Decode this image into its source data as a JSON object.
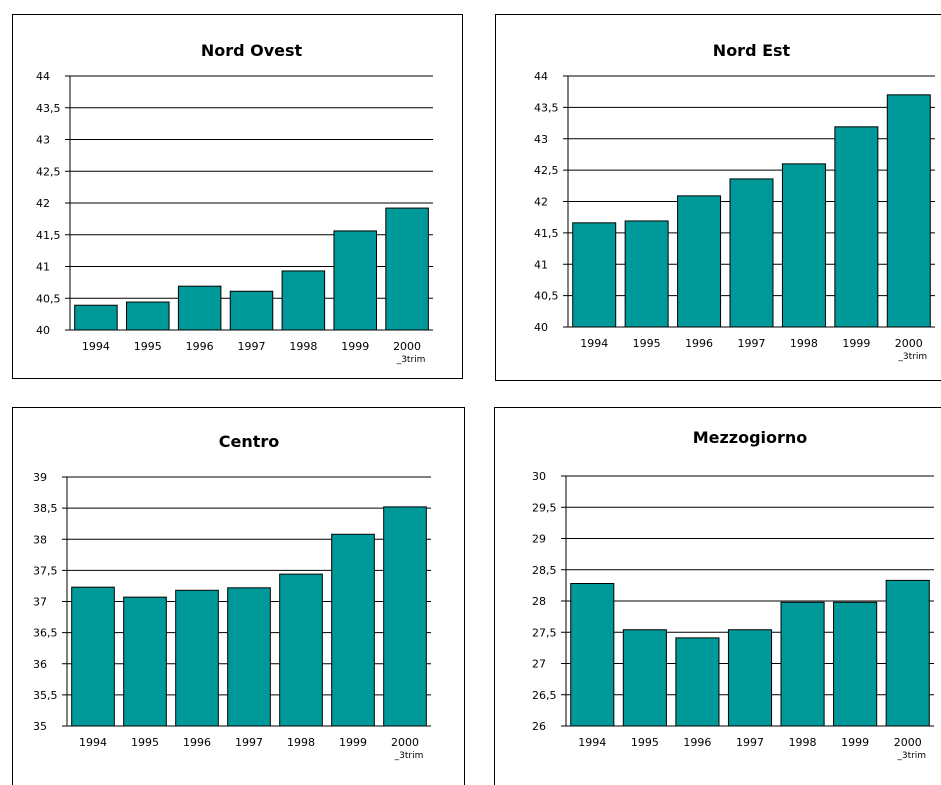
{
  "chart_data": [
    {
      "type": "bar",
      "title": "Nord Ovest",
      "color": "#009999",
      "categories": [
        "1994",
        "1995",
        "1996",
        "1997",
        "1998",
        "1999",
        "2000 _3trim"
      ],
      "values": [
        40.39,
        40.44,
        40.69,
        40.61,
        40.93,
        41.56,
        41.92
      ],
      "ylim": [
        40,
        44
      ],
      "yticks": [
        40,
        {
          "value": 40.5,
          "label": "40,5"
        },
        41,
        {
          "value": 41.5,
          "label": "41,5"
        },
        42,
        {
          "value": 42.5,
          "label": "42,5"
        },
        43,
        {
          "value": 43.5,
          "label": "43,5"
        },
        44
      ],
      "grid": true
    },
    {
      "type": "bar",
      "title": "Nord Est",
      "color": "#009999",
      "categories": [
        "1994",
        "1995",
        "1996",
        "1997",
        "1998",
        "1999",
        "2000 _3trim"
      ],
      "values": [
        41.66,
        41.69,
        42.09,
        42.36,
        42.6,
        43.19,
        43.7
      ],
      "ylim": [
        40,
        44
      ],
      "yticks": [
        40,
        {
          "value": 40.5,
          "label": "40,5"
        },
        41,
        {
          "value": 41.5,
          "label": "41,5"
        },
        42,
        {
          "value": 42.5,
          "label": "42,5"
        },
        43,
        {
          "value": 43.5,
          "label": "43,5"
        },
        44
      ],
      "grid": true
    },
    {
      "type": "bar",
      "title": "Centro",
      "color": "#009999",
      "categories": [
        "1994",
        "1995",
        "1996",
        "1997",
        "1998",
        "1999",
        "2000 _3trim"
      ],
      "values": [
        37.23,
        37.07,
        37.18,
        37.22,
        37.44,
        38.08,
        38.52
      ],
      "ylim": [
        35,
        39
      ],
      "yticks": [
        35,
        {
          "value": 35.5,
          "label": "35,5"
        },
        36,
        {
          "value": 36.5,
          "label": "36,5"
        },
        37,
        {
          "value": 37.5,
          "label": "37,5"
        },
        38,
        {
          "value": 38.5,
          "label": "38,5"
        },
        39
      ],
      "grid": true
    },
    {
      "type": "bar",
      "title": "Mezzogiorno",
      "color": "#009999",
      "categories": [
        "1994",
        "1995",
        "1996",
        "1997",
        "1998",
        "1999",
        "2000 _3trim"
      ],
      "values": [
        28.28,
        27.54,
        27.41,
        27.54,
        27.98,
        27.98,
        28.33
      ],
      "ylim": [
        26,
        30
      ],
      "yticks": [
        26,
        {
          "value": 26.5,
          "label": "26,5"
        },
        27,
        {
          "value": 27.5,
          "label": "27,5"
        },
        28,
        {
          "value": 28.5,
          "label": "28,5"
        },
        29,
        {
          "value": 29.5,
          "label": "29,5"
        },
        30
      ],
      "grid": true
    }
  ]
}
